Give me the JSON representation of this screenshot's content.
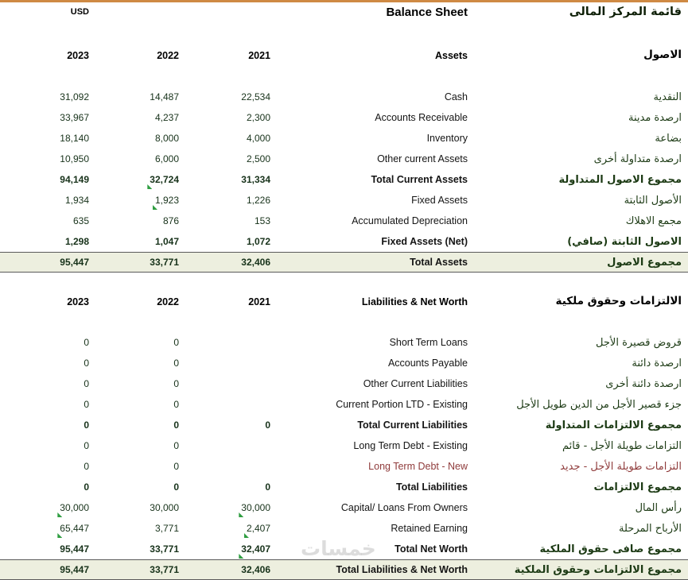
{
  "header": {
    "currency": "USD",
    "title_en": "Balance Sheet",
    "title_ar": "قائمة المركز المالى"
  },
  "years": {
    "y2023": "2023",
    "y2022": "2022",
    "y2021": "2021"
  },
  "colors": {
    "top_border": "#CF8A44",
    "grand_row_bg": "#EDEFDF",
    "comment_flag_green": "#2F9E41",
    "number_text": "#17321A",
    "ltd_new_text": "#8F3B3B"
  },
  "assets": {
    "header_en": "Assets",
    "header_ar": "الاصول",
    "rows": [
      {
        "en": "Cash",
        "ar": "النقدية",
        "y2023": "31,092",
        "y2022": "14,487",
        "y2021": "22,534"
      },
      {
        "en": "Accounts Receivable",
        "ar": "ارصدة مدينة",
        "y2023": "33,967",
        "y2022": "4,237",
        "y2021": "2,300"
      },
      {
        "en": "Inventory",
        "ar": "بضاعة",
        "y2023": "18,140",
        "y2022": "8,000",
        "y2021": "4,000"
      },
      {
        "en": "Other current Assets",
        "ar": "ارصدة متداولة أخرى",
        "y2023": "10,950",
        "y2022": "6,000",
        "y2021": "2,500"
      },
      {
        "en": "Total Current Assets",
        "ar": "مجموع الاصول المتداولة",
        "y2023": "94,149",
        "y2022": "32,724",
        "y2021": "31,334"
      },
      {
        "en": "Fixed Assets",
        "ar": "الأصول الثابتة",
        "y2023": "1,934",
        "y2022": "1,923",
        "y2021": "1,226"
      },
      {
        "en": "Accumulated Depreciation",
        "ar": "مجمع الاهلاك",
        "y2023": "635",
        "y2022": "876",
        "y2021": "153"
      },
      {
        "en": "Fixed Assets (Net)",
        "ar": "الاصول الثابتة (صافي)",
        "y2023": "1,298",
        "y2022": "1,047",
        "y2021": "1,072"
      },
      {
        "en": "Total Assets",
        "ar": "مجموع الاصول",
        "y2023": "95,447",
        "y2022": "33,771",
        "y2021": "32,406"
      }
    ]
  },
  "liabilities": {
    "header_en": "Liabilities & Net Worth",
    "header_ar": "الالتزامات وحقوق ملكية",
    "rows": [
      {
        "en": "Short Term Loans",
        "ar": "قروض قصيرة الأجل",
        "y2023": "0",
        "y2022": "0",
        "y2021": ""
      },
      {
        "en": "Accounts Payable",
        "ar": "ارصدة دائنة",
        "y2023": "0",
        "y2022": "0",
        "y2021": ""
      },
      {
        "en": "Other Current Liabilities",
        "ar": "ارصدة دائنة أخرى",
        "y2023": "0",
        "y2022": "0",
        "y2021": ""
      },
      {
        "en": "Current Portion LTD - Existing",
        "ar": "جزء قصير الأجل من الدين طويل الأجل",
        "y2023": "0",
        "y2022": "0",
        "y2021": ""
      },
      {
        "en": "Total Current Liabilities",
        "ar": "مجموع الالتزامات المتداولة",
        "y2023": "0",
        "y2022": "0",
        "y2021": "0"
      },
      {
        "en": "Long Term Debt - Existing",
        "ar": "التزامات طويلة الأجل - قائم",
        "y2023": "0",
        "y2022": "0",
        "y2021": ""
      },
      {
        "en": "Long Term Debt - New",
        "ar": "التزامات طويلة الأجل - جديد",
        "y2023": "0",
        "y2022": "0",
        "y2021": ""
      },
      {
        "en": "Total Liabilities",
        "ar": "مجموع الالتزامات",
        "y2023": "0",
        "y2022": "0",
        "y2021": "0"
      },
      {
        "en": "Capital/ Loans From Owners",
        "ar": "رأس المال",
        "y2023": "30,000",
        "y2022": "30,000",
        "y2021": "30,000"
      },
      {
        "en": "Retained Earning",
        "ar": "الأرباح المرحلة",
        "y2023": "65,447",
        "y2022": "3,771",
        "y2021": "2,407"
      },
      {
        "en": "Total Net Worth",
        "ar": "مجموع صافى حقوق الملكية",
        "y2023": "95,447",
        "y2022": "33,771",
        "y2021": "32,407"
      },
      {
        "en": "Total Liabilities & Net Worth",
        "ar": "مجموع الالتزامات وحقوق الملكية",
        "y2023": "95,447",
        "y2022": "33,771",
        "y2021": "32,406"
      }
    ]
  },
  "watermark": "خمسات"
}
